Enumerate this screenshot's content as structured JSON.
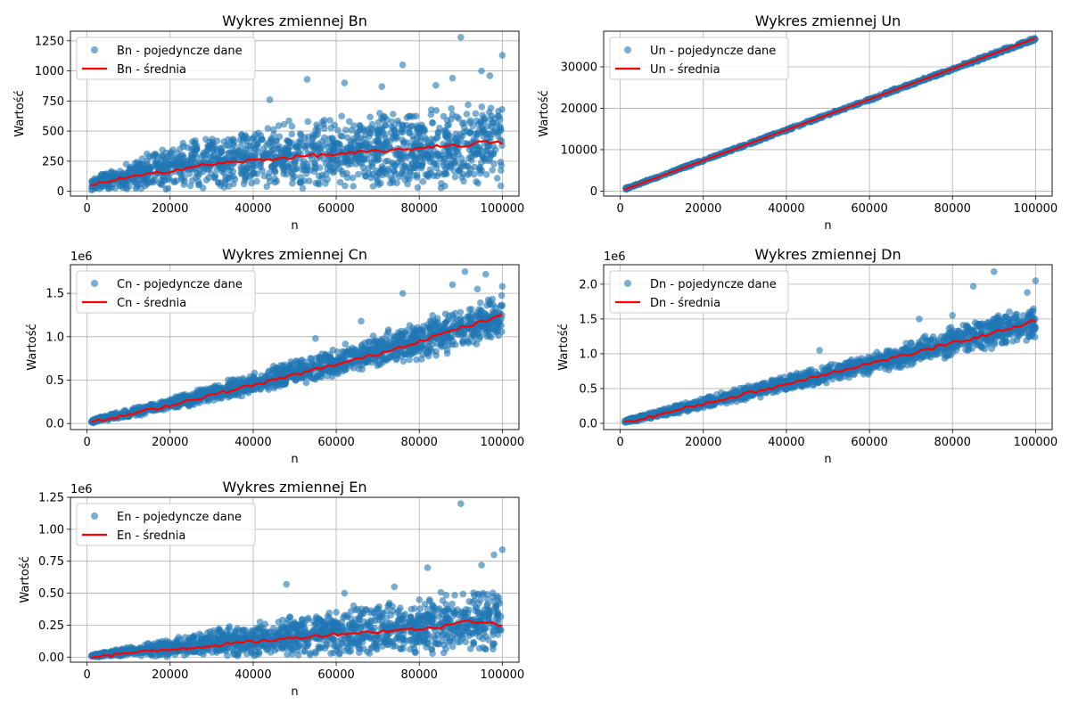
{
  "colors": {
    "scatter": "#1f77b4",
    "mean_line": "#ff0000",
    "grid": "#b0b0b0"
  },
  "chart_data": [
    {
      "type": "scatter",
      "title": "Wykres zmiennej Bn",
      "xlabel": "n",
      "ylabel": "Wartość",
      "xlim": [
        -4000,
        104000
      ],
      "ylim": [
        -40,
        1330
      ],
      "xticks": [
        0,
        20000,
        40000,
        60000,
        80000,
        100000
      ],
      "xtick_labels": [
        "0",
        "20000",
        "40000",
        "60000",
        "80000",
        "100000"
      ],
      "yticks": [
        0,
        250,
        500,
        750,
        1000,
        1250
      ],
      "ytick_labels": [
        "0",
        "250",
        "500",
        "750",
        "1000",
        "1250"
      ],
      "offset_label": "",
      "grid": true,
      "legend": [
        "Bn - pojedyncze dane",
        "Bn - średnia"
      ],
      "legend_position": "top-left",
      "mean_line": {
        "name": "Bn - średnia",
        "x": [
          1000,
          5000,
          10000,
          15000,
          20000,
          25000,
          30000,
          35000,
          40000,
          45000,
          50000,
          55000,
          60000,
          65000,
          70000,
          75000,
          80000,
          85000,
          90000,
          95000,
          100000
        ],
        "y": [
          45,
          85,
          115,
          140,
          170,
          200,
          225,
          240,
          255,
          270,
          285,
          300,
          305,
          320,
          335,
          340,
          360,
          380,
          375,
          410,
          400
        ]
      },
      "scatter_band": {
        "name": "Bn - pojedyncze dane",
        "x": [
          1000,
          20000,
          40000,
          60000,
          80000,
          100000
        ],
        "y_low": [
          5,
          5,
          5,
          5,
          5,
          5
        ],
        "y_high": [
          120,
          400,
          560,
          650,
          700,
          780
        ]
      },
      "outliers": {
        "x": [
          90000,
          100000,
          53000,
          76000,
          84000,
          95000,
          97000,
          62000,
          44000,
          71000,
          88000
        ],
        "y": [
          1280,
          1130,
          930,
          1050,
          880,
          1000,
          960,
          900,
          760,
          870,
          940
        ]
      }
    },
    {
      "type": "scatter",
      "title": "Wykres zmiennej Un",
      "xlabel": "n",
      "ylabel": "Wartość",
      "xlim": [
        -4000,
        104000
      ],
      "ylim": [
        -1200,
        38600
      ],
      "xticks": [
        0,
        20000,
        40000,
        60000,
        80000,
        100000
      ],
      "xtick_labels": [
        "0",
        "20000",
        "40000",
        "60000",
        "80000",
        "100000"
      ],
      "yticks": [
        0,
        10000,
        20000,
        30000
      ],
      "ytick_labels": [
        "0",
        "10000",
        "20000",
        "30000"
      ],
      "offset_label": "",
      "grid": true,
      "legend": [
        "Un - pojedyncze dane",
        "Un - średnia"
      ],
      "legend_position": "top-left",
      "mean_line": {
        "name": "Un - średnia",
        "x": [
          1000,
          100000
        ],
        "y": [
          370,
          36900
        ]
      },
      "scatter_band": {
        "name": "Un - pojedyncze dane",
        "x": [
          1000,
          100000
        ],
        "y_low": [
          200,
          36300
        ],
        "y_high": [
          700,
          37300
        ]
      },
      "outliers": {
        "x": [],
        "y": []
      }
    },
    {
      "type": "scatter",
      "title": "Wykres zmiennej Cn",
      "xlabel": "n",
      "ylabel": "Wartość",
      "xlim": [
        -4000,
        104000
      ],
      "ylim": [
        -0.07,
        1.83
      ],
      "xticks": [
        0,
        20000,
        40000,
        60000,
        80000,
        100000
      ],
      "xtick_labels": [
        "0",
        "20000",
        "40000",
        "60000",
        "80000",
        "100000"
      ],
      "yticks": [
        0,
        0.5,
        1.0,
        1.5
      ],
      "ytick_labels": [
        "0.0",
        "0.5",
        "1.0",
        "1.5"
      ],
      "offset_label": "1e6",
      "grid": true,
      "legend": [
        "Cn - pojedyncze dane",
        "Cn - średnia"
      ],
      "legend_position": "top-left",
      "mean_line": {
        "name": "Cn - średnia",
        "x": [
          1000,
          10000,
          20000,
          30000,
          40000,
          50000,
          60000,
          70000,
          80000,
          90000,
          100000
        ],
        "y": [
          0.01,
          0.1,
          0.21,
          0.33,
          0.44,
          0.56,
          0.68,
          0.8,
          0.95,
          1.1,
          1.24
        ]
      },
      "scatter_band": {
        "name": "Cn - pojedyncze dane",
        "x": [
          1000,
          20000,
          40000,
          60000,
          80000,
          100000
        ],
        "y_low": [
          0.0,
          0.15,
          0.33,
          0.53,
          0.72,
          0.95
        ],
        "y_high": [
          0.05,
          0.3,
          0.6,
          0.9,
          1.2,
          1.5
        ]
      },
      "outliers": {
        "x": [
          91000,
          96000,
          88000,
          100000,
          76000,
          94000,
          55000,
          66000
        ],
        "y": [
          1.75,
          1.72,
          1.6,
          1.58,
          1.5,
          1.55,
          0.98,
          1.18
        ]
      }
    },
    {
      "type": "scatter",
      "title": "Wykres zmiennej Dn",
      "xlabel": "n",
      "ylabel": "Wartość",
      "xlim": [
        -4000,
        104000
      ],
      "ylim": [
        -0.09,
        2.28
      ],
      "xticks": [
        0,
        20000,
        40000,
        60000,
        80000,
        100000
      ],
      "xtick_labels": [
        "0",
        "20000",
        "40000",
        "60000",
        "80000",
        "100000"
      ],
      "yticks": [
        0,
        0.5,
        1.0,
        1.5,
        2.0
      ],
      "ytick_labels": [
        "0.0",
        "0.5",
        "1.0",
        "1.5",
        "2.0"
      ],
      "offset_label": "1e6",
      "grid": true,
      "legend": [
        "Dn - pojedyncze dane",
        "Dn - średnia"
      ],
      "legend_position": "top-left",
      "mean_line": {
        "name": "Dn - średnia",
        "x": [
          1000,
          10000,
          20000,
          30000,
          40000,
          50000,
          60000,
          70000,
          80000,
          90000,
          100000
        ],
        "y": [
          0.01,
          0.13,
          0.28,
          0.42,
          0.56,
          0.72,
          0.86,
          1.0,
          1.15,
          1.3,
          1.48
        ]
      },
      "scatter_band": {
        "name": "Dn - pojedyncze dane",
        "x": [
          1000,
          20000,
          40000,
          60000,
          80000,
          100000
        ],
        "y_low": [
          0.0,
          0.2,
          0.45,
          0.7,
          0.95,
          1.2
        ],
        "y_high": [
          0.05,
          0.38,
          0.7,
          1.0,
          1.4,
          1.75
        ]
      },
      "outliers": {
        "x": [
          90000,
          100000,
          85000,
          98000,
          48000,
          72000,
          80000
        ],
        "y": [
          2.18,
          2.05,
          1.97,
          1.88,
          1.05,
          1.5,
          1.55
        ]
      }
    },
    {
      "type": "scatter",
      "title": "Wykres zmiennej En",
      "xlabel": "n",
      "ylabel": "Wartość",
      "xlim": [
        -4000,
        104000
      ],
      "ylim": [
        -0.04,
        1.25
      ],
      "xticks": [
        0,
        20000,
        40000,
        60000,
        80000,
        100000
      ],
      "xtick_labels": [
        "0",
        "20000",
        "40000",
        "60000",
        "80000",
        "100000"
      ],
      "yticks": [
        0,
        0.25,
        0.5,
        0.75,
        1.0,
        1.25
      ],
      "ytick_labels": [
        "0.00",
        "0.25",
        "0.50",
        "0.75",
        "1.00",
        "1.25"
      ],
      "offset_label": "1e6",
      "grid": true,
      "legend": [
        "En - pojedyncze dane",
        "En - średnia"
      ],
      "legend_position": "top-left",
      "mean_line": {
        "name": "En - średnia",
        "x": [
          1000,
          10000,
          20000,
          30000,
          40000,
          50000,
          60000,
          70000,
          75000,
          80000,
          85000,
          90000,
          95000,
          100000
        ],
        "y": [
          0.005,
          0.03,
          0.06,
          0.09,
          0.12,
          0.15,
          0.18,
          0.2,
          0.21,
          0.22,
          0.23,
          0.29,
          0.27,
          0.25
        ]
      },
      "scatter_band": {
        "name": "En - pojedyncze dane",
        "x": [
          1000,
          20000,
          40000,
          60000,
          80000,
          100000
        ],
        "y_low": [
          0.0,
          0.0,
          0.0,
          0.0,
          0.0,
          0.0
        ],
        "y_high": [
          0.02,
          0.15,
          0.28,
          0.4,
          0.48,
          0.6
        ]
      },
      "outliers": {
        "x": [
          90000,
          100000,
          48000,
          82000,
          95000,
          98000,
          62000,
          74000
        ],
        "y": [
          1.2,
          0.84,
          0.57,
          0.7,
          0.72,
          0.8,
          0.5,
          0.55
        ]
      }
    }
  ]
}
